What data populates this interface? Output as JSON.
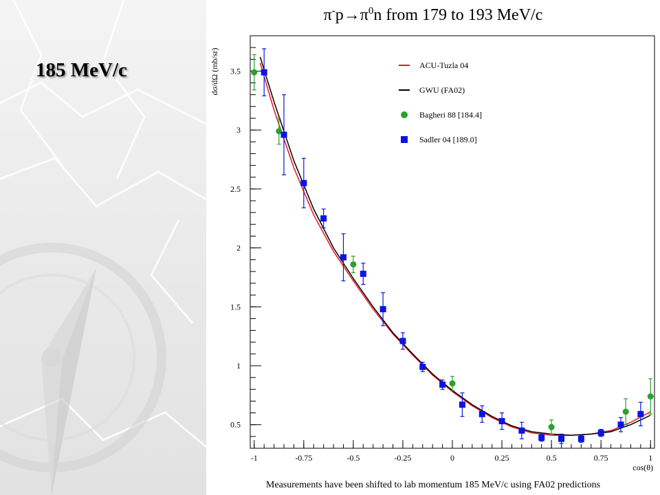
{
  "slide": {
    "title": "185 MeV/c"
  },
  "footnote": "Measurements have been shifted to lab momentum 185 MeV/c using FA02 predictions",
  "chart_data": {
    "type": "scatter",
    "title": {
      "pi": "π",
      "minus": "-",
      "p_arrow": "p→",
      "pi2": "π",
      "zero": "0",
      "rest": "n from 179 to 193 MeV/c"
    },
    "xlabel": "cos(θ)",
    "ylabel": "dσ/dΩ (mb/sr)",
    "xlim": [
      -1.02,
      1.02
    ],
    "ylim": [
      0.3,
      3.8
    ],
    "xticks": [
      -1,
      -0.75,
      -0.5,
      -0.25,
      0,
      0.25,
      0.5,
      0.75,
      1
    ],
    "xtick_labels": [
      "-1",
      "-0.75",
      "-0.5",
      "-0.25",
      "0",
      "0.25",
      "0.5",
      "0.75",
      "1"
    ],
    "yticks": [
      0.5,
      1,
      1.5,
      2,
      2.5,
      3,
      3.5
    ],
    "ytick_labels": [
      "0.5",
      "1",
      "1.5",
      "2",
      "2.5",
      "3",
      "3.5"
    ],
    "legend_position": "top-right",
    "curves": [
      {
        "name": "ACU-Tuzla 04",
        "color": "#e8141e",
        "x": [
          -0.97,
          -0.9,
          -0.8,
          -0.7,
          -0.6,
          -0.5,
          -0.4,
          -0.3,
          -0.2,
          -0.1,
          0,
          0.1,
          0.2,
          0.3,
          0.4,
          0.5,
          0.6,
          0.7,
          0.8,
          0.9,
          1.0
        ],
        "y": [
          3.57,
          3.17,
          2.68,
          2.28,
          1.97,
          1.72,
          1.48,
          1.27,
          1.09,
          0.92,
          0.78,
          0.66,
          0.56,
          0.48,
          0.43,
          0.41,
          0.41,
          0.42,
          0.45,
          0.52,
          0.61
        ]
      },
      {
        "name": "GWU (FA02)",
        "color": "#000000",
        "x": [
          -0.97,
          -0.9,
          -0.8,
          -0.7,
          -0.6,
          -0.5,
          -0.4,
          -0.3,
          -0.2,
          -0.1,
          0,
          0.1,
          0.2,
          0.3,
          0.4,
          0.5,
          0.6,
          0.7,
          0.8,
          0.9,
          1.0
        ],
        "y": [
          3.62,
          3.24,
          2.74,
          2.33,
          2.0,
          1.74,
          1.5,
          1.28,
          1.1,
          0.93,
          0.79,
          0.67,
          0.57,
          0.49,
          0.44,
          0.42,
          0.41,
          0.42,
          0.44,
          0.5,
          0.58
        ]
      }
    ],
    "series": [
      {
        "name": "Bagheri 88  [184.4]",
        "color": "#2ca02c",
        "marker": "circle",
        "points": [
          {
            "x": -1.0,
            "y": 3.49,
            "err": 0.15
          },
          {
            "x": -0.875,
            "y": 2.99,
            "err": 0.11
          },
          {
            "x": -0.5,
            "y": 1.86,
            "err": 0.07
          },
          {
            "x": 0.0,
            "y": 0.85,
            "err": 0.06
          },
          {
            "x": 0.5,
            "y": 0.48,
            "err": 0.06
          },
          {
            "x": 0.875,
            "y": 0.61,
            "err": 0.11
          },
          {
            "x": 1.0,
            "y": 0.74,
            "err": 0.15
          }
        ]
      },
      {
        "name": "Sadler 04  [189.0]",
        "color": "#0a14e6",
        "marker": "square",
        "points": [
          {
            "x": -0.95,
            "y": 3.49,
            "err": 0.2
          },
          {
            "x": -0.85,
            "y": 2.96,
            "err": 0.34
          },
          {
            "x": -0.75,
            "y": 2.55,
            "err": 0.21
          },
          {
            "x": -0.65,
            "y": 2.25,
            "err": 0.08
          },
          {
            "x": -0.55,
            "y": 1.92,
            "err": 0.2
          },
          {
            "x": -0.45,
            "y": 1.78,
            "err": 0.09
          },
          {
            "x": -0.35,
            "y": 1.48,
            "err": 0.14
          },
          {
            "x": -0.25,
            "y": 1.21,
            "err": 0.07
          },
          {
            "x": -0.15,
            "y": 0.99,
            "err": 0.04
          },
          {
            "x": -0.05,
            "y": 0.84,
            "err": 0.04
          },
          {
            "x": 0.05,
            "y": 0.67,
            "err": 0.1
          },
          {
            "x": 0.15,
            "y": 0.59,
            "err": 0.07
          },
          {
            "x": 0.25,
            "y": 0.53,
            "err": 0.07
          },
          {
            "x": 0.35,
            "y": 0.45,
            "err": 0.07
          },
          {
            "x": 0.45,
            "y": 0.39,
            "err": 0.03
          },
          {
            "x": 0.55,
            "y": 0.38,
            "err": 0.04
          },
          {
            "x": 0.65,
            "y": 0.38,
            "err": 0.03
          },
          {
            "x": 0.75,
            "y": 0.43,
            "err": 0.03
          },
          {
            "x": 0.85,
            "y": 0.5,
            "err": 0.06
          },
          {
            "x": 0.95,
            "y": 0.59,
            "err": 0.1
          }
        ]
      }
    ]
  }
}
